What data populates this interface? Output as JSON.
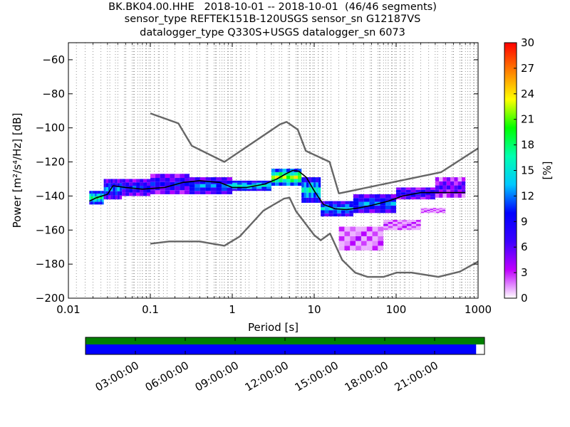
{
  "chart_data": {
    "type": "heatmap",
    "title_lines": [
      "BK.BK04.00.HHE   2018-10-01 -- 2018-10-01  (46/46 segments)",
      "sensor_type REFTEK151B-120USGS sensor_sn G12187VS",
      "datalogger_type Q330S+USGS datalogger_sn 6073"
    ],
    "xlabel": "Period [s]",
    "ylabel": "Power [m²/s⁴/Hz] [dB]",
    "xscale": "log",
    "xlim": [
      0.01,
      1000
    ],
    "ylim": [
      -200,
      -50
    ],
    "x_tick_values": [
      0.01,
      0.1,
      1,
      10,
      100,
      1000
    ],
    "x_tick_labels": [
      "0.01",
      "0.1",
      "1",
      "10",
      "100",
      "1000"
    ],
    "y_tick_values": [
      -200,
      -180,
      -160,
      -140,
      -120,
      -100,
      -80,
      -60
    ],
    "y_tick_labels": [
      "−200",
      "−180",
      "−160",
      "−140",
      "−120",
      "−100",
      "−80",
      "−60"
    ],
    "grid": "vertical dotted at period bins",
    "colorbar": {
      "label": "[%]",
      "range": [
        0,
        30
      ],
      "ticks": [
        0,
        3,
        6,
        9,
        12,
        15,
        18,
        21,
        24,
        27,
        30
      ],
      "colors": [
        "#ffffff",
        "#bf00ff",
        "#3c00ff",
        "#0000ff",
        "#00c8ff",
        "#00ffb0",
        "#00ff00",
        "#ffff00",
        "#ff8000",
        "#ff0000"
      ]
    },
    "series": [
      {
        "role": "noise-model-high",
        "color": "#666666",
        "x": [
          0.1,
          0.22,
          0.32,
          0.8,
          3.8,
          4.6,
          6.3,
          7.9,
          15.4,
          20,
          354.8,
          1000
        ],
        "y": [
          -91.5,
          -97.4,
          -110.5,
          -120,
          -98,
          -96.5,
          -101,
          -113.5,
          -120,
          -138.5,
          -126,
          -112
        ]
      },
      {
        "role": "noise-model-low",
        "color": "#666666",
        "x": [
          0.1,
          0.17,
          0.4,
          0.8,
          1.24,
          2.4,
          4.3,
          5,
          6,
          10,
          12,
          15.6,
          21.9,
          31.6,
          45,
          70,
          101,
          154,
          328,
          600,
          1000
        ],
        "y": [
          -168,
          -166.7,
          -166.7,
          -169.2,
          -163.7,
          -148.6,
          -141.5,
          -141,
          -149,
          -163,
          -166,
          -162,
          -177.5,
          -185,
          -187.5,
          -187.5,
          -185,
          -185,
          -187.5,
          -184.4,
          -178.5
        ]
      },
      {
        "role": "median",
        "color": "#000000",
        "x": [
          0.018,
          0.022,
          0.03,
          0.035,
          0.05,
          0.08,
          0.15,
          0.25,
          0.4,
          0.7,
          1,
          1.5,
          2.5,
          3.5,
          4.5,
          5.5,
          6.5,
          8,
          10,
          13,
          18,
          25,
          35,
          50,
          80,
          120,
          200,
          400,
          700
        ],
        "y": [
          -143,
          -141,
          -139,
          -134,
          -135,
          -136,
          -135,
          -132,
          -131,
          -132,
          -135,
          -135,
          -133,
          -130,
          -127,
          -125,
          -125.5,
          -129,
          -137,
          -145,
          -147.5,
          -148,
          -147,
          -145.5,
          -143,
          -140,
          -138,
          -138,
          -138
        ]
      }
    ],
    "psd_density": [
      {
        "x": [
          0.018,
          0.027
        ],
        "y": [
          -145,
          -137
        ],
        "level": 18
      },
      {
        "x": [
          0.027,
          0.045
        ],
        "y": [
          -142,
          -130
        ],
        "level": 12
      },
      {
        "x": [
          0.045,
          0.1
        ],
        "y": [
          -140,
          -130
        ],
        "level": 10
      },
      {
        "x": [
          0.1,
          0.3
        ],
        "y": [
          -139,
          -127
        ],
        "level": 9
      },
      {
        "x": [
          0.3,
          1
        ],
        "y": [
          -139,
          -129
        ],
        "level": 12
      },
      {
        "x": [
          1,
          3
        ],
        "y": [
          -137,
          -131
        ],
        "level": 16
      },
      {
        "x": [
          3,
          7
        ],
        "y": [
          -134,
          -124
        ],
        "level": 22
      },
      {
        "x": [
          7,
          12
        ],
        "y": [
          -144,
          -129
        ],
        "level": 16
      },
      {
        "x": [
          12,
          30
        ],
        "y": [
          -152,
          -143
        ],
        "level": 14
      },
      {
        "x": [
          30,
          100
        ],
        "y": [
          -150,
          -139
        ],
        "level": 12
      },
      {
        "x": [
          100,
          300
        ],
        "y": [
          -142,
          -135
        ],
        "level": 9
      },
      {
        "x": [
          300,
          700
        ],
        "y": [
          -141,
          -129
        ],
        "level": 6
      },
      {
        "x": [
          20,
          70
        ],
        "y": [
          -172,
          -158
        ],
        "level": 2
      },
      {
        "x": [
          70,
          200
        ],
        "y": [
          -160,
          -154
        ],
        "level": 2
      },
      {
        "x": [
          200,
          400
        ],
        "y": [
          -150,
          -147
        ],
        "level": 2
      }
    ]
  },
  "timeline": {
    "tick_labels": [
      "03:00:00",
      "06:00:00",
      "09:00:00",
      "12:00:00",
      "15:00:00",
      "18:00:00",
      "21:00:00"
    ],
    "tick_hours": [
      3,
      6,
      9,
      12,
      15,
      18,
      21
    ],
    "hours_total": 24,
    "data_coverage_fraction": 0.979,
    "data_color": "#008000",
    "gap_color": "#0000ff",
    "gap_track_color": "#ffffff"
  }
}
